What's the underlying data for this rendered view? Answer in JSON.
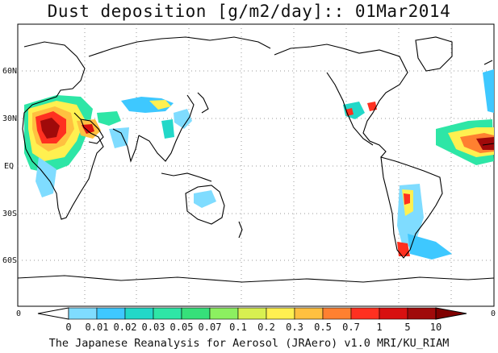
{
  "title": "Dust deposition [g/m2/day]:: 01Mar2014",
  "footer": "The Japanese Reanalysis for Aerosol (JRAero) v1.0 MRI/KU_RIAM",
  "lat_labels": [
    "60N",
    "30N",
    "EQ",
    "30S",
    "60S"
  ],
  "lon_labels": [
    "0",
    "0"
  ],
  "colorbar": {
    "labels": [
      "0",
      "0.01",
      "0.02",
      "0.03",
      "0.05",
      "0.07",
      "0.1",
      "0.2",
      "0.3",
      "0.5",
      "0.7",
      "1",
      "5",
      "10"
    ],
    "colors": [
      "#ffffff",
      "#7fdcff",
      "#3ec8ff",
      "#22d8c8",
      "#2ee6a6",
      "#36e07a",
      "#8cf060",
      "#d8f050",
      "#fff050",
      "#ffc040",
      "#ff8030",
      "#ff3020",
      "#d81010",
      "#a00a0a"
    ],
    "arrow_left_color": "#ffffff",
    "arrow_right_color": "#800000"
  }
}
